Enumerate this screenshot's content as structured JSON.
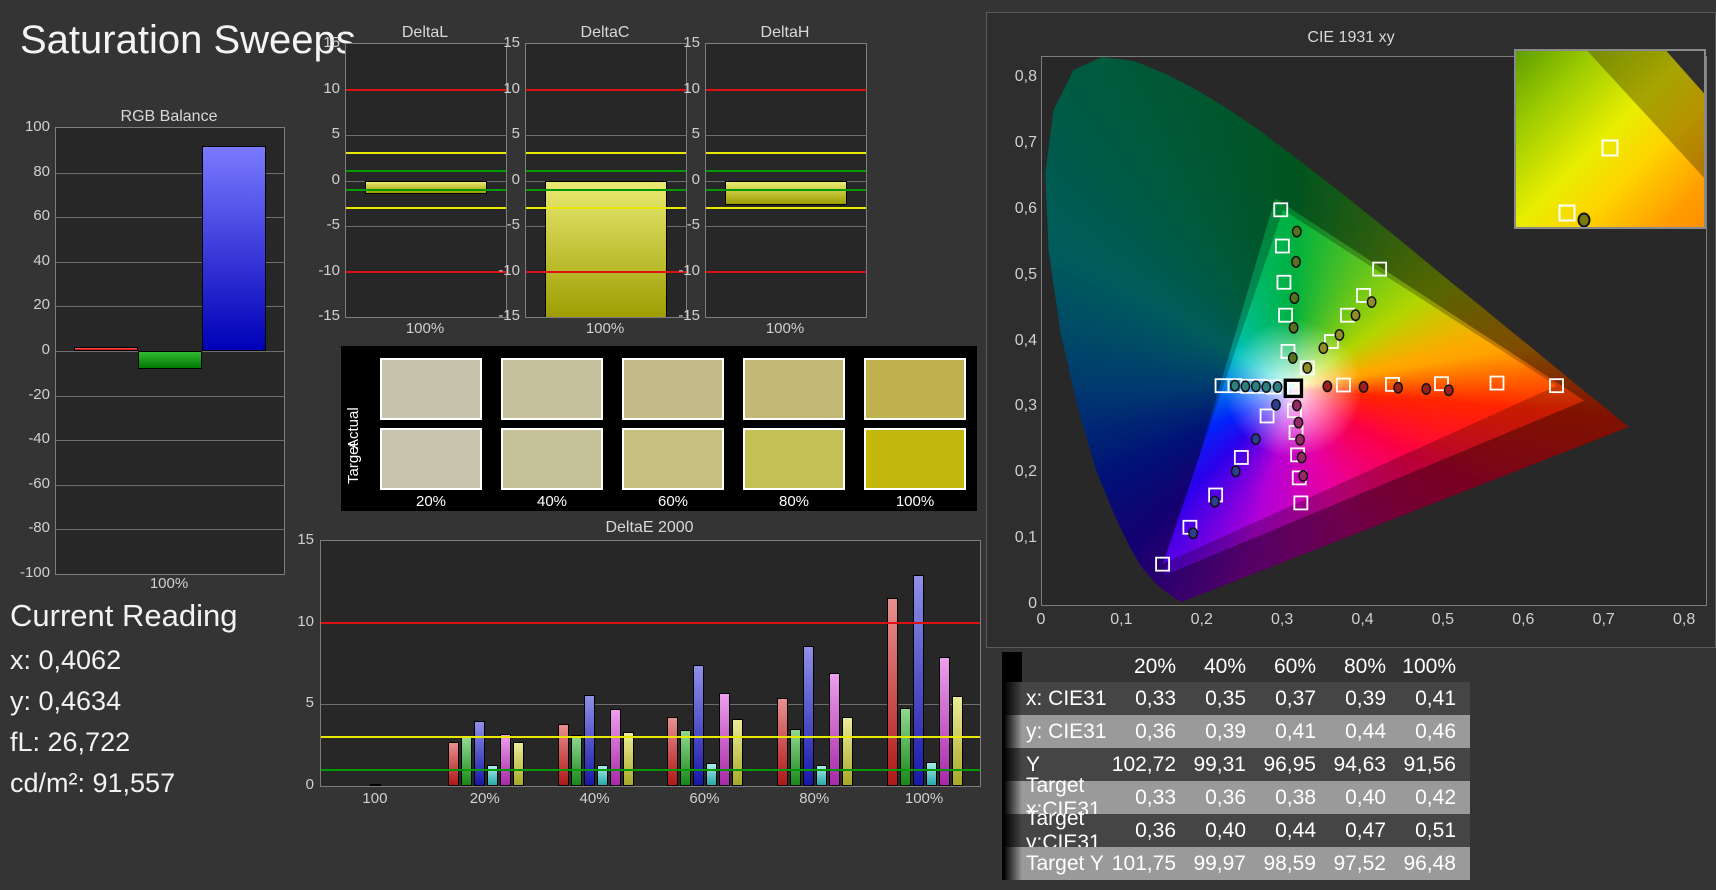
{
  "page": {
    "title": "Saturation Sweeps",
    "bg": "#343434"
  },
  "colors": {
    "grid": "#6e6e6e",
    "limit_red": "#dd1111",
    "limit_yellow": "#e8e800",
    "limit_green": "#009900",
    "bar_red": [
      "#ff6666",
      "#c00000"
    ],
    "bar_green": [
      "#33bb33",
      "#007700"
    ],
    "bar_blue": [
      "#7a7aff",
      "#0000b8"
    ],
    "bar_yellow": [
      "#eaea72",
      "#9c9c00"
    ],
    "de_red": [
      "#e89090",
      "#b01818"
    ],
    "de_green": [
      "#90d890",
      "#188818"
    ],
    "de_blue": [
      "#9090e8",
      "#1818a8"
    ],
    "de_cyan": [
      "#a8ecec",
      "#28a8a8"
    ],
    "de_magenta": [
      "#eca0ec",
      "#a828a8"
    ],
    "de_yellow": [
      "#ecec98",
      "#a8a828"
    ],
    "de_white": [
      "#ffffff",
      "#999999"
    ]
  },
  "reading": {
    "title": "Current Reading",
    "lines": [
      "x: 0,4062",
      "y: 0,4634",
      "fL: 26,722",
      "cd/m²: 91,557"
    ]
  },
  "swatches": {
    "row_labels": [
      "Actual",
      "Target"
    ],
    "col_labels": [
      "20%",
      "40%",
      "60%",
      "80%",
      "100%"
    ],
    "actual": [
      "#c5c3ab",
      "#c5bf9b",
      "#c5bb89",
      "#c3b876",
      "#c1b250"
    ],
    "target": [
      "#c7c6ad",
      "#c6c199",
      "#c5c07f",
      "#c3c056",
      "#c2b80d"
    ]
  },
  "table": {
    "columns": [
      "20%",
      "40%",
      "60%",
      "80%",
      "100%"
    ],
    "rows": [
      {
        "label": "x: CIE31",
        "values": [
          "0,33",
          "0,35",
          "0,37",
          "0,39",
          "0,41"
        ]
      },
      {
        "label": "y: CIE31",
        "values": [
          "0,36",
          "0,39",
          "0,41",
          "0,44",
          "0,46"
        ]
      },
      {
        "label": "Y",
        "values": [
          "102,72",
          "99,31",
          "96,95",
          "94,63",
          "91,56"
        ]
      },
      {
        "label": "Target x:CIE31",
        "values": [
          "0,33",
          "0,36",
          "0,38",
          "0,40",
          "0,42"
        ]
      },
      {
        "label": "Target y:CIE31",
        "values": [
          "0,36",
          "0,40",
          "0,44",
          "0,47",
          "0,51"
        ]
      },
      {
        "label": "Target Y",
        "values": [
          "101,75",
          "99,97",
          "98,59",
          "97,52",
          "96,48"
        ]
      }
    ],
    "row_dark": "#454545",
    "row_light": "#9a9a9a"
  },
  "chart_data": {
    "rgb_balance": {
      "type": "bar",
      "title": "RGB Balance",
      "xlabel": "100%",
      "ylim": [
        -100,
        100
      ],
      "yticks": [
        100,
        80,
        60,
        40,
        20,
        0,
        -20,
        -40,
        -60,
        -80,
        -100
      ],
      "categories": [
        "Red",
        "Green",
        "Blue"
      ],
      "values": [
        2,
        -8,
        92
      ]
    },
    "delta_charts": {
      "type": "bar",
      "ylim": [
        -15,
        15
      ],
      "yticks": [
        15,
        10,
        5,
        0,
        -5,
        -10,
        -15
      ],
      "limits": {
        "red": 10,
        "yellow": 3,
        "green": 1
      },
      "xlabel": "100%",
      "charts": [
        {
          "title": "DeltaL",
          "value": -1.5
        },
        {
          "title": "DeltaC",
          "value": -15.4
        },
        {
          "title": "DeltaH",
          "value": -2.7
        }
      ]
    },
    "deltae2000": {
      "type": "bar",
      "title": "DeltaE 2000",
      "ylim": [
        0,
        15
      ],
      "yticks": [
        15,
        10,
        5,
        0
      ],
      "limits": {
        "red": 10,
        "yellow": 3,
        "green": 1
      },
      "categories": [
        "100",
        "20%",
        "40%",
        "60%",
        "80%",
        "100%"
      ],
      "series": [
        {
          "name": "red",
          "values": [
            null,
            2.7,
            3.8,
            4.2,
            5.4,
            11.5
          ]
        },
        {
          "name": "green",
          "values": [
            null,
            3.0,
            3.1,
            3.4,
            3.5,
            4.8
          ]
        },
        {
          "name": "blue",
          "values": [
            null,
            4.0,
            5.6,
            7.4,
            8.6,
            12.9
          ]
        },
        {
          "name": "cyan",
          "values": [
            null,
            1.3,
            1.3,
            1.4,
            1.3,
            1.5
          ]
        },
        {
          "name": "magenta",
          "values": [
            null,
            3.2,
            4.7,
            5.7,
            6.9,
            7.9
          ]
        },
        {
          "name": "yellow",
          "values": [
            null,
            2.7,
            3.3,
            4.1,
            4.2,
            5.5
          ]
        },
        {
          "name": "white",
          "values": [
            0.15,
            null,
            null,
            null,
            null,
            null
          ]
        }
      ]
    },
    "cie": {
      "type": "scatter",
      "title": "CIE 1931 xy",
      "xlim": [
        0,
        0.826
      ],
      "ylim": [
        0,
        0.832
      ],
      "x_ticks": [
        {
          "v": 0,
          "label": "0"
        },
        {
          "v": 0.1,
          "label": "0,1"
        },
        {
          "v": 0.2,
          "label": "0,2"
        },
        {
          "v": 0.3,
          "label": "0,3"
        },
        {
          "v": 0.4,
          "label": "0,4"
        },
        {
          "v": 0.5,
          "label": "0,5"
        },
        {
          "v": 0.6,
          "label": "0,6"
        },
        {
          "v": 0.7,
          "label": "0,7"
        },
        {
          "v": 0.8,
          "label": "0,8"
        }
      ],
      "y_ticks": [
        {
          "v": 0,
          "label": "0"
        },
        {
          "v": 0.1,
          "label": "0,1"
        },
        {
          "v": 0.2,
          "label": "0,2"
        },
        {
          "v": 0.3,
          "label": "0,3"
        },
        {
          "v": 0.4,
          "label": "0,4"
        },
        {
          "v": 0.5,
          "label": "0,5"
        },
        {
          "v": 0.6,
          "label": "0,6"
        },
        {
          "v": 0.7,
          "label": "0,7"
        },
        {
          "v": 0.8,
          "label": "0,8"
        }
      ],
      "white_point": [
        0.3127,
        0.329
      ],
      "locus": [
        [
          0.1741,
          0.005
        ],
        [
          0.166,
          0.009
        ],
        [
          0.1566,
          0.0177
        ],
        [
          0.144,
          0.0297
        ],
        [
          0.1241,
          0.0578
        ],
        [
          0.1096,
          0.0868
        ],
        [
          0.0913,
          0.1327
        ],
        [
          0.0687,
          0.2007
        ],
        [
          0.0454,
          0.295
        ],
        [
          0.0235,
          0.4127
        ],
        [
          0.0082,
          0.5384
        ],
        [
          0.0039,
          0.6548
        ],
        [
          0.0139,
          0.7502
        ],
        [
          0.0389,
          0.812
        ],
        [
          0.0743,
          0.8338
        ],
        [
          0.1142,
          0.8262
        ],
        [
          0.1547,
          0.8059
        ],
        [
          0.1929,
          0.7816
        ],
        [
          0.2296,
          0.7543
        ],
        [
          0.2658,
          0.7243
        ],
        [
          0.3016,
          0.6923
        ],
        [
          0.3373,
          0.6589
        ],
        [
          0.3731,
          0.6245
        ],
        [
          0.4087,
          0.5896
        ],
        [
          0.4441,
          0.5547
        ],
        [
          0.4788,
          0.5202
        ],
        [
          0.5125,
          0.4866
        ],
        [
          0.5448,
          0.4544
        ],
        [
          0.5752,
          0.4242
        ],
        [
          0.6029,
          0.3965
        ],
        [
          0.627,
          0.3725
        ],
        [
          0.6482,
          0.3514
        ],
        [
          0.6658,
          0.334
        ],
        [
          0.6915,
          0.3083
        ],
        [
          0.7079,
          0.292
        ],
        [
          0.719,
          0.2809
        ],
        [
          0.73,
          0.27
        ]
      ],
      "native_triangle": [
        [
          0.675,
          0.31
        ],
        [
          0.29,
          0.617
        ],
        [
          0.152,
          0.045
        ]
      ],
      "target_triangle": [
        [
          0.64,
          0.333
        ],
        [
          0.3,
          0.6
        ],
        [
          0.15,
          0.062
        ]
      ],
      "sweeps": [
        {
          "name": "red",
          "dot": "#9b2020",
          "target": [
            [
              0.375,
              0.334
            ],
            [
              0.436,
              0.335
            ],
            [
              0.497,
              0.336
            ],
            [
              0.566,
              0.337
            ],
            [
              0.64,
              0.333
            ]
          ],
          "measured": [
            [
              0.355,
              0.332
            ],
            [
              0.4,
              0.331
            ],
            [
              0.443,
              0.33
            ],
            [
              0.478,
              0.328
            ],
            [
              0.506,
              0.326
            ]
          ]
        },
        {
          "name": "green",
          "dot": "#56731d",
          "target": [
            [
              0.306,
              0.385
            ],
            [
              0.303,
              0.44
            ],
            [
              0.301,
              0.49
            ],
            [
              0.299,
              0.545
            ],
            [
              0.297,
              0.6
            ]
          ],
          "measured": [
            [
              0.312,
              0.375
            ],
            [
              0.313,
              0.421
            ],
            [
              0.314,
              0.466
            ],
            [
              0.316,
              0.521
            ],
            [
              0.317,
              0.567
            ]
          ]
        },
        {
          "name": "blue",
          "dot": "#2c3f8f",
          "target": [
            [
              0.28,
              0.287
            ],
            [
              0.248,
              0.224
            ],
            [
              0.216,
              0.167
            ],
            [
              0.184,
              0.118
            ],
            [
              0.15,
              0.062
            ]
          ],
          "measured": [
            [
              0.291,
              0.304
            ],
            [
              0.266,
              0.252
            ],
            [
              0.241,
              0.203
            ],
            [
              0.215,
              0.157
            ],
            [
              0.188,
              0.109
            ]
          ]
        },
        {
          "name": "cyan",
          "dot": "#2e7f7f",
          "target": [
            [
              0.288,
              0.331
            ],
            [
              0.272,
              0.332
            ],
            [
              0.256,
              0.332
            ],
            [
              0.24,
              0.333
            ],
            [
              0.224,
              0.333
            ]
          ],
          "measured": [
            [
              0.293,
              0.331
            ],
            [
              0.279,
              0.331
            ],
            [
              0.266,
              0.332
            ],
            [
              0.253,
              0.332
            ],
            [
              0.24,
              0.333
            ]
          ]
        },
        {
          "name": "magenta",
          "dot": "#962a68",
          "target": [
            [
              0.314,
              0.295
            ],
            [
              0.316,
              0.262
            ],
            [
              0.318,
              0.228
            ],
            [
              0.32,
              0.193
            ],
            [
              0.322,
              0.155
            ]
          ],
          "measured": [
            [
              0.317,
              0.303
            ],
            [
              0.319,
              0.277
            ],
            [
              0.321,
              0.251
            ],
            [
              0.323,
              0.224
            ],
            [
              0.325,
              0.196
            ]
          ]
        },
        {
          "name": "yellow",
          "dot": "#8f8f25",
          "target": [
            [
              0.33,
              0.36
            ],
            [
              0.36,
              0.4
            ],
            [
              0.38,
              0.44
            ],
            [
              0.4,
              0.47
            ],
            [
              0.42,
              0.51
            ]
          ],
          "measured": [
            [
              0.33,
              0.36
            ],
            [
              0.35,
              0.39
            ],
            [
              0.37,
              0.41
            ],
            [
              0.39,
              0.44
            ],
            [
              0.41,
              0.46
            ]
          ]
        }
      ],
      "inset": {
        "squares": [
          [
            0.5,
            0.55
          ],
          [
            0.27,
            0.92
          ]
        ],
        "dot": [
          0.36,
          0.96
        ]
      }
    }
  }
}
